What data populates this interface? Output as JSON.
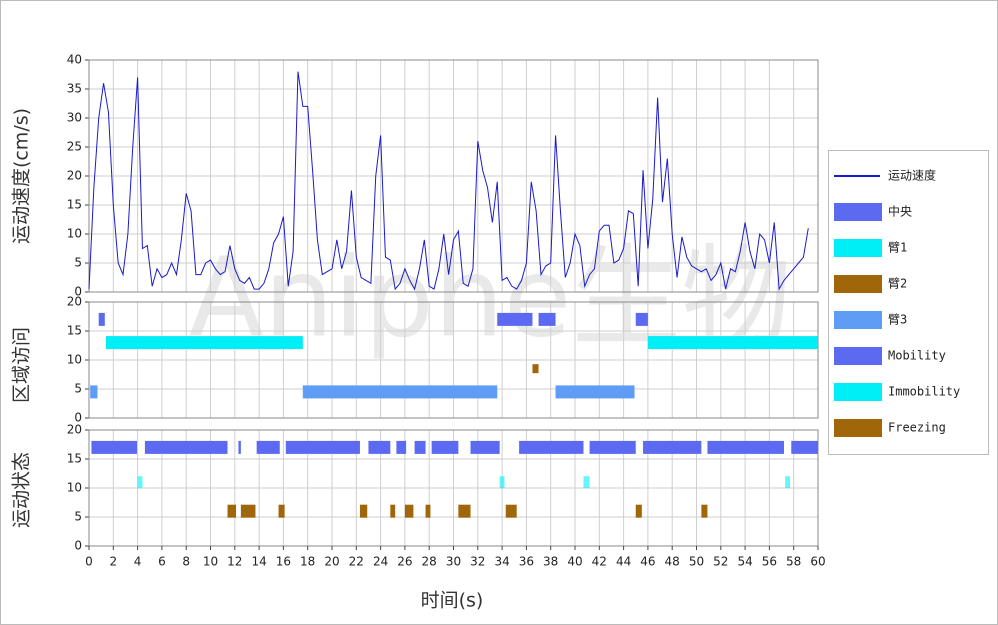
{
  "watermark": "Aniphe生物",
  "chart_data": [
    {
      "type": "line",
      "ylabel": "运动速度(cm/s)",
      "ylim": [
        0,
        40
      ],
      "yticks": [
        0,
        5,
        10,
        15,
        20,
        25,
        30,
        35,
        40
      ],
      "grid": true,
      "x": [
        0,
        0.4,
        0.8,
        1.2,
        1.6,
        2,
        2.4,
        2.8,
        3.2,
        3.6,
        4,
        4.4,
        4.8,
        5.2,
        5.6,
        6,
        6.4,
        6.8,
        7.2,
        7.6,
        8,
        8.4,
        8.8,
        9.2,
        9.6,
        10,
        10.4,
        10.8,
        11.2,
        11.6,
        12,
        12.4,
        12.8,
        13.2,
        13.6,
        14,
        14.4,
        14.8,
        15.2,
        15.6,
        16,
        16.4,
        16.8,
        17.2,
        17.6,
        18,
        18.4,
        18.8,
        19.2,
        19.6,
        20,
        20.4,
        20.8,
        21.2,
        21.6,
        22,
        22.4,
        22.8,
        23.2,
        23.6,
        24,
        24.4,
        24.8,
        25.2,
        25.6,
        26,
        26.4,
        26.8,
        27.2,
        27.6,
        28,
        28.4,
        28.8,
        29.2,
        29.6,
        30,
        30.4,
        30.8,
        31.2,
        31.6,
        32,
        32.4,
        32.8,
        33.2,
        33.6,
        34,
        34.4,
        34.8,
        35.2,
        35.6,
        36,
        36.4,
        36.8,
        37.2,
        37.6,
        38,
        38.4,
        38.8,
        39.2,
        39.6,
        40,
        40.4,
        40.8,
        41.2,
        41.6,
        42,
        42.4,
        42.8,
        43.2,
        43.6,
        44,
        44.4,
        44.8,
        45.2,
        45.6,
        46,
        46.4,
        46.8,
        47.2,
        47.6,
        48,
        48.4,
        48.8,
        49.2,
        49.6,
        50,
        50.4,
        50.8,
        51.2,
        51.6,
        52,
        52.4,
        52.8,
        53.2,
        53.6,
        54,
        54.4,
        54.8,
        55.2,
        55.6,
        56,
        56.4,
        56.8,
        57.2,
        57.6,
        58,
        58.4,
        58.8,
        59.2
      ],
      "series": [
        {
          "name": "运动速度",
          "color": "#1a1acd",
          "values": [
            0.5,
            18,
            30,
            36,
            31,
            15,
            5,
            3,
            10,
            25,
            37,
            7.5,
            8,
            1,
            4,
            2.5,
            3,
            5,
            3,
            9,
            17,
            14,
            3,
            3,
            5,
            5.5,
            4,
            3,
            3.5,
            8,
            4,
            2,
            1.5,
            2.5,
            0.5,
            0.5,
            1.5,
            4,
            8.5,
            10,
            13,
            1,
            7,
            38,
            32,
            32,
            21,
            9,
            3,
            3.5,
            4,
            9,
            4,
            7,
            17.5,
            6,
            2.5,
            2,
            1.5,
            20,
            27,
            6,
            5.5,
            0.5,
            1.5,
            4,
            2,
            0.5,
            4,
            9,
            1,
            0.5,
            4,
            10,
            3,
            9,
            10.5,
            1.5,
            1,
            4,
            26,
            21,
            18,
            12,
            19,
            2,
            2.5,
            1,
            0.5,
            2,
            5,
            19,
            14,
            3,
            4.5,
            5,
            27,
            14,
            2.5,
            5,
            10,
            8,
            1,
            3,
            4,
            10.5,
            11.5,
            11.5,
            5,
            5.5,
            7.5,
            14,
            13.5,
            1,
            21,
            7.5,
            16,
            33.5,
            15.5,
            23,
            10,
            2.5,
            9.5,
            6,
            4.5,
            4,
            3.5,
            4,
            2,
            3,
            5,
            0.5,
            4,
            3.5,
            7,
            12,
            7,
            4,
            10,
            9,
            5,
            12,
            0.5,
            2,
            3,
            4,
            5,
            6,
            11
          ]
        }
      ]
    },
    {
      "type": "interval",
      "ylabel": "区域访问",
      "ylim": [
        0,
        20
      ],
      "yticks": [
        0,
        5,
        10,
        15,
        20
      ],
      "grid": true,
      "series": [
        {
          "name": "中央",
          "color": "#5b6af0",
          "level": 17,
          "intervals": [
            [
              0.8,
              1.3
            ],
            [
              33.6,
              36.5
            ],
            [
              37.0,
              38.4
            ],
            [
              45.0,
              46.0
            ]
          ]
        },
        {
          "name": "臂1",
          "color": "#00eef5",
          "level": 13,
          "intervals": [
            [
              1.4,
              17.6
            ],
            [
              46.0,
              60
            ]
          ]
        },
        {
          "name": "臂2",
          "color": "#a0660a",
          "level": 8.5,
          "intervals": [
            [
              36.5,
              37.0
            ]
          ]
        },
        {
          "name": "臂3",
          "color": "#5f9cf5",
          "level": 4.5,
          "intervals": [
            [
              0.1,
              0.7
            ],
            [
              17.6,
              33.6
            ],
            [
              38.4,
              44.9
            ]
          ]
        }
      ]
    },
    {
      "type": "interval",
      "ylabel": "运动状态",
      "xlabel": "时间(s)",
      "ylim": [
        0,
        20
      ],
      "yticks": [
        0,
        5,
        10,
        15,
        20
      ],
      "grid": true,
      "xlim": [
        0,
        60
      ],
      "xticks": [
        0,
        2,
        4,
        6,
        8,
        10,
        12,
        14,
        16,
        18,
        20,
        22,
        24,
        26,
        28,
        30,
        32,
        34,
        36,
        38,
        40,
        42,
        44,
        46,
        48,
        50,
        52,
        54,
        56,
        58,
        60
      ],
      "series": [
        {
          "name": "Mobility",
          "color": "#5b6af0",
          "level": 17,
          "intervals": [
            [
              0.2,
              3.95
            ],
            [
              4.6,
              11.4
            ],
            [
              12.3,
              12.5
            ],
            [
              13.8,
              15.7
            ],
            [
              16.2,
              22.3
            ],
            [
              23.0,
              24.8
            ],
            [
              25.3,
              26.1
            ],
            [
              26.8,
              27.7
            ],
            [
              28.2,
              30.4
            ],
            [
              31.4,
              33.8
            ],
            [
              35.4,
              40.7
            ],
            [
              41.2,
              45.0
            ],
            [
              45.6,
              50.4
            ],
            [
              50.9,
              57.2
            ],
            [
              57.8,
              60
            ]
          ]
        },
        {
          "name": "Immobility",
          "color": "#00eef5",
          "level": 11,
          "intervals": [
            [
              4.0,
              4.4
            ],
            [
              33.8,
              34.2
            ],
            [
              40.7,
              41.2
            ],
            [
              57.3,
              57.7
            ]
          ]
        },
        {
          "name": "Freezing",
          "color": "#a0660a",
          "level": 6,
          "intervals": [
            [
              11.4,
              12.1
            ],
            [
              12.5,
              13.7
            ],
            [
              15.6,
              16.1
            ],
            [
              22.3,
              22.9
            ],
            [
              24.8,
              25.2
            ],
            [
              26.0,
              26.7
            ],
            [
              27.7,
              28.1
            ],
            [
              30.4,
              31.4
            ],
            [
              34.3,
              35.2
            ],
            [
              45.0,
              45.5
            ],
            [
              50.4,
              50.9
            ]
          ]
        }
      ]
    }
  ]
}
